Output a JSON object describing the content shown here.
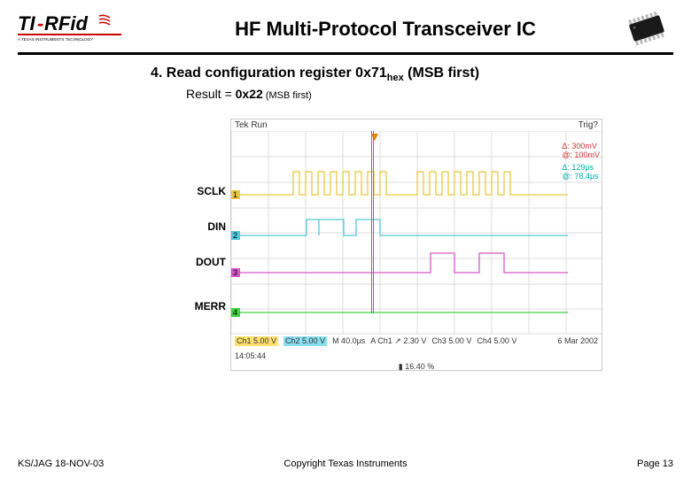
{
  "header": {
    "title": "HF Multi-Protocol Transceiver IC",
    "logo_text_top": "TI-RFid",
    "logo_text_bottom": "A TEXAS INSTRUMENTS TECHNOLOGY"
  },
  "section": {
    "number": "4.",
    "title_main": "Read configuration register 0x71",
    "title_sub": "hex",
    "title_tail": " (MSB first)",
    "result_label": "Result = ",
    "result_value": "0x22",
    "result_tail": " (MSB first)"
  },
  "scope": {
    "top_left": "Tek Run",
    "top_right": "Trig?",
    "info": {
      "line1": "Δ: 300mV",
      "line2": "@: 100mV",
      "line3": "Δ: 129μs",
      "line4": "@: 78.4μs"
    },
    "labels": {
      "sclk": "SCLK",
      "din": "DIN",
      "dout": "DOUT",
      "merr": "MERR"
    },
    "channels": {
      "sclk": {
        "color": "#e8c840",
        "baseline": 72,
        "amplitude": 26,
        "pulses": [
          70,
          84,
          98,
          112,
          126,
          140,
          154,
          168,
          210,
          224,
          238,
          252,
          266,
          280,
          294,
          308
        ]
      },
      "din": {
        "color": "#50c8d8",
        "baseline": 118,
        "amplitude": 18,
        "segments": [
          [
            85,
            99
          ],
          [
            99,
            127
          ],
          [
            141,
            168
          ]
        ]
      },
      "dout": {
        "color": "#d858c8",
        "baseline": 160,
        "amplitude": 22,
        "segments": [
          [
            225,
            252
          ],
          [
            280,
            308
          ]
        ]
      },
      "merr": {
        "color": "#40d040",
        "baseline": 205,
        "amplitude": 0
      }
    },
    "bottom": {
      "ch1": "Ch1  5.00 V",
      "ch2": "Ch2  5.00 V",
      "m": "M 40.0μs",
      "a": "A  Ch1 ↗  2.30 V",
      "ch3": "Ch3  5.00 V",
      "ch4": "Ch4  5.00 V",
      "date": "6 Mar 2002",
      "time": "14:05:44",
      "pct": "▮ 16.40 %"
    }
  },
  "footer": {
    "left": "KS/JAG 18-NOV-03",
    "center": "Copyright Texas Instruments",
    "right": "Page 13"
  }
}
